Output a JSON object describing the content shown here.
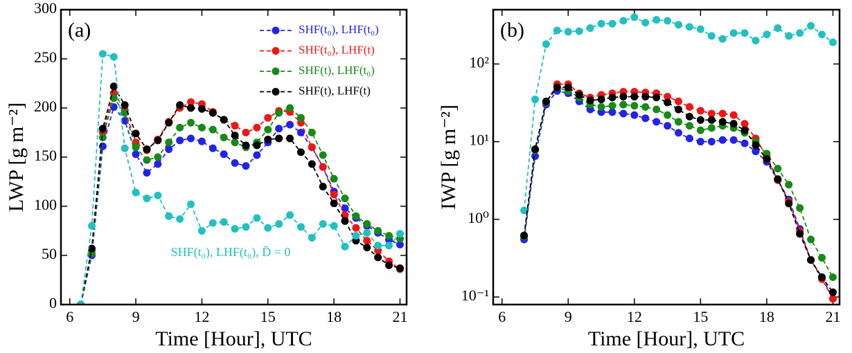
{
  "chart_data": [
    {
      "type": "line",
      "panel_label": "(a)",
      "xlabel": "Time [Hour], UTC",
      "ylabel": "LWP [g m⁻²]",
      "x": [
        6.5,
        7,
        7.5,
        8,
        8.5,
        9,
        9.5,
        10,
        10.5,
        11,
        11.5,
        12,
        12.5,
        13,
        13.5,
        14,
        14.5,
        15,
        15.5,
        16,
        16.5,
        17,
        17.5,
        18,
        18.5,
        19,
        19.5,
        20,
        20.5,
        21
      ],
      "xlim": [
        5.6,
        21.3
      ],
      "xticks": [
        6,
        9,
        12,
        15,
        18,
        21
      ],
      "ylim": [
        0,
        300
      ],
      "yticks": [
        0,
        50,
        100,
        150,
        200,
        250,
        300
      ],
      "log_y": false,
      "legend": "upper right",
      "annotation": {
        "text": "SHF(t₀), LHF(t₀), D̄ = 0",
        "color": "#22c0c0"
      },
      "series": [
        {
          "name": "SHF(t₀), LHF(t₀)",
          "color": "#2323e8",
          "values": [
            0,
            50,
            161,
            201,
            187,
            153,
            134,
            143,
            158,
            167,
            169,
            166,
            159,
            153,
            144,
            141,
            152,
            165,
            179,
            183,
            175,
            160,
            140,
            115,
            98,
            88,
            80,
            73,
            66,
            61
          ]
        },
        {
          "name": "SHF(t₀), LHF(t)",
          "color": "#f01616",
          "values": [
            0,
            55,
            175,
            215,
            198,
            165,
            157,
            168,
            186,
            200,
            206,
            204,
            196,
            188,
            182,
            175,
            180,
            190,
            197,
            196,
            185,
            160,
            140,
            112,
            91,
            78,
            65,
            55,
            44,
            36
          ]
        },
        {
          "name": "SHF(t), LHF(t₀)",
          "color": "#178a17",
          "values": [
            0,
            52,
            170,
            210,
            195,
            160,
            147,
            150,
            165,
            180,
            185,
            180,
            178,
            170,
            165,
            160,
            165,
            178,
            195,
            200,
            190,
            175,
            152,
            128,
            108,
            90,
            82,
            75,
            70,
            67
          ]
        },
        {
          "name": "SHF(t), LHF(t)",
          "color": "#000000",
          "values": [
            0,
            57,
            179,
            222,
            203,
            174,
            158,
            167,
            185,
            203,
            200,
            199,
            195,
            188,
            172,
            162,
            162,
            168,
            169,
            169,
            155,
            143,
            120,
            103,
            85,
            65,
            58,
            48,
            40,
            37
          ]
        },
        {
          "color": "#22c0c0",
          "values": [
            0,
            80,
            255,
            252,
            159,
            114,
            108,
            111,
            90,
            87,
            102,
            75,
            83,
            84,
            77,
            79,
            88,
            78,
            82,
            91,
            79,
            68,
            82,
            80,
            59,
            70,
            73,
            60,
            60,
            72
          ]
        }
      ]
    },
    {
      "type": "line",
      "panel_label": "(b)",
      "xlabel": "Time [Hour], UTC",
      "ylabel": "IWP [g m⁻²]",
      "x": [
        7,
        7.5,
        8,
        8.5,
        9,
        9.5,
        10,
        10.5,
        11,
        11.5,
        12,
        12.5,
        13,
        13.5,
        14,
        14.5,
        15,
        15.5,
        16,
        16.5,
        17,
        17.5,
        18,
        18.5,
        19,
        19.5,
        20,
        20.5,
        21
      ],
      "xlim": [
        5.6,
        21.3
      ],
      "xticks": [
        6,
        9,
        12,
        15,
        18,
        21
      ],
      "ylim": [
        0.08,
        500
      ],
      "yticks": [
        {
          "value": 0.1,
          "label": "10⁻¹"
        },
        {
          "value": 1,
          "label": "10⁰"
        },
        {
          "value": 10,
          "label": "10¹"
        },
        {
          "value": 100,
          "label": "10²"
        }
      ],
      "log_y": true,
      "series": [
        {
          "color": "#22c0c0",
          "values": [
            1.3,
            35,
            180,
            270,
            260,
            265,
            290,
            330,
            330,
            360,
            400,
            340,
            370,
            360,
            320,
            300,
            280,
            230,
            210,
            250,
            250,
            200,
            240,
            290,
            230,
            250,
            310,
            240,
            190
          ]
        },
        {
          "color": "#2323e8",
          "values": [
            0.55,
            6.5,
            30,
            45,
            42,
            33,
            26,
            24,
            24,
            23,
            22,
            20,
            18,
            16,
            13,
            11,
            10,
            10,
            10.5,
            10.5,
            9.5,
            7.5,
            5.5,
            3.2,
            1.8,
            0.75,
            0.3,
            0.18,
            0.095
          ]
        },
        {
          "color": "#f01616",
          "values": [
            0.6,
            7.8,
            32,
            55,
            55,
            42,
            37,
            40,
            42,
            44,
            44,
            43,
            42,
            38,
            33,
            28,
            25,
            23,
            23,
            22,
            17,
            11,
            6.5,
            3.2,
            1.7,
            0.7,
            0.3,
            0.17,
            0.095
          ]
        },
        {
          "color": "#178a17",
          "values": [
            0.6,
            7.8,
            32,
            50,
            45,
            37,
            30,
            28,
            29,
            30,
            29,
            28,
            26,
            22,
            18,
            16,
            14,
            15,
            16,
            15,
            13,
            10,
            7,
            4.5,
            2.8,
            1.4,
            0.55,
            0.32,
            0.18
          ]
        },
        {
          "color": "#000000",
          "values": [
            0.62,
            8,
            33,
            50,
            50,
            40,
            34,
            35,
            37,
            38,
            38,
            38,
            37,
            32,
            26,
            21,
            19,
            19,
            18,
            17,
            14,
            9,
            6,
            3.3,
            1.6,
            0.65,
            0.3,
            0.18,
            0.115
          ]
        }
      ]
    }
  ]
}
